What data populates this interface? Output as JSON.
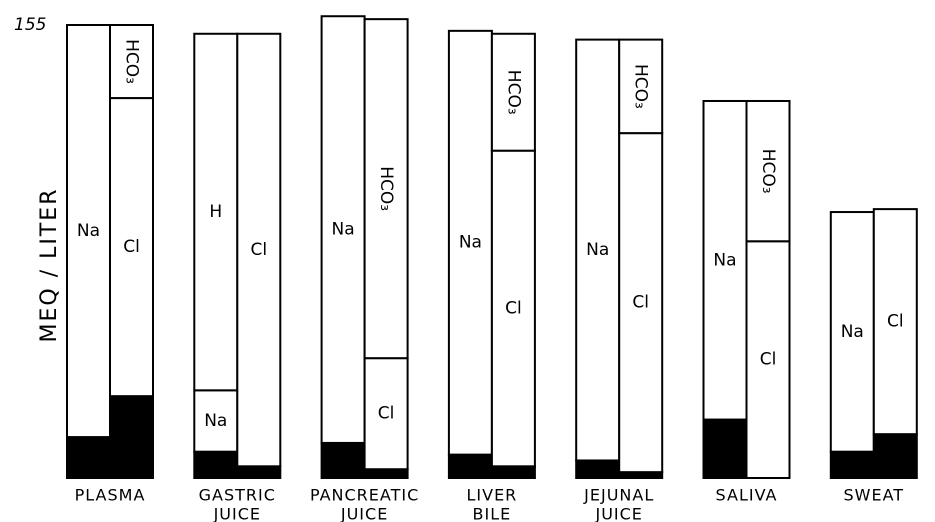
{
  "chart_data": {
    "type": "paired-stacked-bar",
    "y_label": "MEQ / LITER",
    "ylim": [
      0,
      155
    ],
    "yticks": [
      155
    ],
    "categories": [
      [
        "PLASMA"
      ],
      [
        "GASTRIC",
        "JUICE"
      ],
      [
        "PANCREATIC",
        "JUICE"
      ],
      [
        "LIVER",
        "BILE"
      ],
      [
        "JEJUNAL",
        "JUICE"
      ],
      [
        "SALIVA"
      ],
      [
        "SWEAT"
      ]
    ],
    "stacks": [
      [
        [
          {
            "value": 14,
            "color": "#000000"
          },
          {
            "label": "Na",
            "value": 141,
            "color": "#ffffff"
          }
        ],
        [
          {
            "value": 28,
            "color": "#000000"
          },
          {
            "label": "Cl",
            "value": 102,
            "color": "#ffffff"
          },
          {
            "label": "HCO₃",
            "value": 25,
            "color": "#ffffff",
            "vertical": true
          }
        ]
      ],
      [
        [
          {
            "value": 9,
            "color": "#000000"
          },
          {
            "label": "Na",
            "value": 21,
            "color": "#ffffff"
          },
          {
            "label": "H",
            "value": 122,
            "color": "#ffffff"
          }
        ],
        [
          {
            "value": 4,
            "color": "#000000"
          },
          {
            "label": "Cl",
            "value": 148,
            "color": "#ffffff"
          }
        ]
      ],
      [
        [
          {
            "value": 12,
            "color": "#000000"
          },
          {
            "label": "Na",
            "value": 146,
            "color": "#ffffff"
          }
        ],
        [
          {
            "value": 3,
            "color": "#000000"
          },
          {
            "label": "Cl",
            "value": 38,
            "color": "#ffffff"
          },
          {
            "label": "HCO₃",
            "value": 116,
            "color": "#ffffff",
            "vertical": true
          }
        ]
      ],
      [
        [
          {
            "value": 8,
            "color": "#000000"
          },
          {
            "label": "Na",
            "value": 145,
            "color": "#ffffff"
          }
        ],
        [
          {
            "value": 4,
            "color": "#000000"
          },
          {
            "label": "Cl",
            "value": 108,
            "color": "#ffffff"
          },
          {
            "label": "HCO₃",
            "value": 40,
            "color": "#ffffff",
            "vertical": true
          }
        ]
      ],
      [
        [
          {
            "value": 6,
            "color": "#000000"
          },
          {
            "label": "Na",
            "value": 144,
            "color": "#ffffff"
          }
        ],
        [
          {
            "value": 2,
            "color": "#000000"
          },
          {
            "label": "Cl",
            "value": 116,
            "color": "#ffffff"
          },
          {
            "label": "HCO₃",
            "value": 32,
            "color": "#ffffff",
            "vertical": true
          }
        ]
      ],
      [
        [
          {
            "value": 20,
            "color": "#000000"
          },
          {
            "label": "Na",
            "value": 109,
            "color": "#ffffff"
          }
        ],
        [
          {
            "label": "Cl",
            "value": 81,
            "color": "#ffffff"
          },
          {
            "label": "HCO₃",
            "value": 48,
            "color": "#ffffff",
            "vertical": true
          }
        ]
      ],
      [
        [
          {
            "value": 9,
            "color": "#000000"
          },
          {
            "label": "Na",
            "value": 82,
            "color": "#ffffff"
          }
        ],
        [
          {
            "value": 15,
            "color": "#000000"
          },
          {
            "label": "Cl",
            "value": 77,
            "color": "#ffffff"
          }
        ]
      ]
    ]
  }
}
